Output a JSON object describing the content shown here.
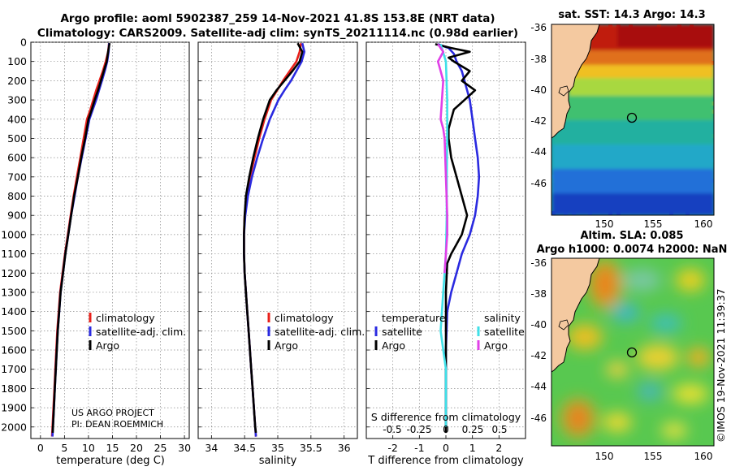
{
  "header": {
    "title_line1": "Argo profile: aoml 5902387_259 14-Nov-2021 41.8S 153.8E (NRT data)",
    "title_line2": "Climatology: CARS2009. Satellite-adj clim: synTS_20211114.nc (0.98d earlier)"
  },
  "credits": {
    "project": "US ARGO PROJECT",
    "pi": "PI: DEAN ROEMMICH",
    "imos": "©IMOS 19-Nov-2021 11:39:37"
  },
  "colors": {
    "climatology": "#e8201a",
    "satellite": "#2a2ae0",
    "argo": "#000000",
    "sat_temp_diff": "#40e0e8",
    "argo_sal_diff": "#e040e8",
    "land": "#f4c9a0"
  },
  "chart_data": [
    {
      "type": "line",
      "id": "temperature",
      "xlabel": "temperature (deg C)",
      "ylabel": "",
      "xlim": [
        -2,
        31
      ],
      "ylim": [
        2060,
        0
      ],
      "x_ticks": [
        0,
        5,
        10,
        15,
        20,
        25,
        30
      ],
      "y_ticks": [
        0,
        100,
        200,
        300,
        400,
        500,
        600,
        700,
        800,
        900,
        1000,
        1100,
        1200,
        1300,
        1400,
        1500,
        1600,
        1700,
        1800,
        1900,
        2000
      ],
      "grid": true,
      "legend": [
        "climatology",
        "satellite-adj. clim.",
        "Argo"
      ],
      "series": [
        {
          "name": "climatology",
          "color_key": "climatology",
          "points": [
            [
              14.3,
              5
            ],
            [
              14.1,
              50
            ],
            [
              13.6,
              100
            ],
            [
              13.0,
              150
            ],
            [
              12.3,
              200
            ],
            [
              11.6,
              250
            ],
            [
              11.0,
              300
            ],
            [
              10.4,
              350
            ],
            [
              9.7,
              400
            ],
            [
              9.0,
              500
            ],
            [
              8.3,
              600
            ],
            [
              7.6,
              700
            ],
            [
              6.9,
              800
            ],
            [
              6.3,
              900
            ],
            [
              5.7,
              1000
            ],
            [
              5.1,
              1100
            ],
            [
              4.6,
              1200
            ],
            [
              4.1,
              1300
            ],
            [
              3.8,
              1400
            ],
            [
              3.5,
              1500
            ],
            [
              3.3,
              1600
            ],
            [
              3.1,
              1700
            ],
            [
              2.9,
              1800
            ],
            [
              2.7,
              1900
            ],
            [
              2.5,
              2000
            ],
            [
              2.4,
              2050
            ]
          ]
        },
        {
          "name": "satellite-adj. clim.",
          "color_key": "satellite",
          "points": [
            [
              14.3,
              5
            ],
            [
              14.2,
              50
            ],
            [
              13.9,
              100
            ],
            [
              13.4,
              150
            ],
            [
              12.8,
              200
            ],
            [
              12.2,
              250
            ],
            [
              11.6,
              300
            ],
            [
              10.9,
              350
            ],
            [
              10.2,
              400
            ],
            [
              9.4,
              500
            ],
            [
              8.6,
              600
            ],
            [
              7.8,
              700
            ],
            [
              7.1,
              800
            ],
            [
              6.4,
              900
            ],
            [
              5.8,
              1000
            ],
            [
              5.2,
              1100
            ],
            [
              4.7,
              1200
            ],
            [
              4.2,
              1300
            ],
            [
              3.9,
              1400
            ],
            [
              3.6,
              1500
            ],
            [
              3.4,
              1600
            ],
            [
              3.2,
              1700
            ],
            [
              3.0,
              1800
            ],
            [
              2.8,
              1900
            ],
            [
              2.6,
              2000
            ],
            [
              2.5,
              2050
            ]
          ]
        },
        {
          "name": "Argo",
          "color_key": "argo",
          "points": [
            [
              14.4,
              5
            ],
            [
              14.1,
              50
            ],
            [
              13.8,
              100
            ],
            [
              13.2,
              150
            ],
            [
              12.6,
              200
            ],
            [
              12.0,
              250
            ],
            [
              11.3,
              300
            ],
            [
              10.7,
              350
            ],
            [
              10.0,
              400
            ],
            [
              9.3,
              500
            ],
            [
              8.5,
              600
            ],
            [
              7.8,
              700
            ],
            [
              7.0,
              800
            ],
            [
              6.4,
              900
            ],
            [
              5.8,
              1000
            ],
            [
              5.2,
              1100
            ],
            [
              4.7,
              1200
            ],
            [
              4.2,
              1300
            ],
            [
              3.9,
              1400
            ],
            [
              3.6,
              1500
            ],
            [
              3.4,
              1600
            ],
            [
              3.2,
              1700
            ],
            [
              3.0,
              1800
            ],
            [
              2.8,
              1900
            ],
            [
              2.6,
              2000
            ],
            [
              2.55,
              2030
            ]
          ]
        }
      ]
    },
    {
      "type": "line",
      "id": "salinity",
      "xlabel": "salinity",
      "ylabel": "",
      "xlim": [
        33.8,
        36.2
      ],
      "ylim": [
        2060,
        0
      ],
      "x_ticks": [
        34,
        34.5,
        35,
        35.5,
        36
      ],
      "grid": true,
      "legend": [
        "climatology",
        "satellite-adj. clim.",
        "Argo"
      ],
      "series": [
        {
          "name": "climatology",
          "color_key": "climatology",
          "points": [
            [
              35.35,
              5
            ],
            [
              35.33,
              50
            ],
            [
              35.28,
              100
            ],
            [
              35.18,
              150
            ],
            [
              35.08,
              200
            ],
            [
              34.99,
              250
            ],
            [
              34.9,
              300
            ],
            [
              34.8,
              400
            ],
            [
              34.72,
              500
            ],
            [
              34.65,
              600
            ],
            [
              34.58,
              700
            ],
            [
              34.53,
              800
            ],
            [
              34.5,
              900
            ],
            [
              34.49,
              1000
            ],
            [
              34.49,
              1100
            ],
            [
              34.5,
              1200
            ],
            [
              34.52,
              1300
            ],
            [
              34.54,
              1400
            ],
            [
              34.56,
              1500
            ],
            [
              34.58,
              1600
            ],
            [
              34.6,
              1700
            ],
            [
              34.62,
              1800
            ],
            [
              34.64,
              1900
            ],
            [
              34.66,
              2000
            ],
            [
              34.67,
              2050
            ]
          ]
        },
        {
          "name": "satellite-adj. clim.",
          "color_key": "satellite",
          "points": [
            [
              35.37,
              5
            ],
            [
              35.4,
              50
            ],
            [
              35.36,
              100
            ],
            [
              35.28,
              150
            ],
            [
              35.2,
              200
            ],
            [
              35.1,
              250
            ],
            [
              35.01,
              300
            ],
            [
              34.88,
              400
            ],
            [
              34.78,
              500
            ],
            [
              34.69,
              600
            ],
            [
              34.61,
              700
            ],
            [
              34.55,
              800
            ],
            [
              34.51,
              900
            ],
            [
              34.49,
              1000
            ],
            [
              34.49,
              1100
            ],
            [
              34.5,
              1200
            ],
            [
              34.52,
              1300
            ],
            [
              34.54,
              1400
            ],
            [
              34.56,
              1500
            ],
            [
              34.58,
              1600
            ],
            [
              34.6,
              1700
            ],
            [
              34.62,
              1800
            ],
            [
              34.64,
              1900
            ],
            [
              34.66,
              2000
            ],
            [
              34.67,
              2050
            ]
          ]
        },
        {
          "name": "Argo",
          "color_key": "argo",
          "points": [
            [
              35.3,
              5
            ],
            [
              35.37,
              50
            ],
            [
              35.33,
              100
            ],
            [
              35.22,
              150
            ],
            [
              35.1,
              200
            ],
            [
              34.98,
              250
            ],
            [
              34.88,
              300
            ],
            [
              34.78,
              400
            ],
            [
              34.7,
              500
            ],
            [
              34.63,
              600
            ],
            [
              34.57,
              700
            ],
            [
              34.52,
              800
            ],
            [
              34.5,
              900
            ],
            [
              34.49,
              1000
            ],
            [
              34.49,
              1100
            ],
            [
              34.5,
              1200
            ],
            [
              34.52,
              1300
            ],
            [
              34.54,
              1400
            ],
            [
              34.56,
              1500
            ],
            [
              34.58,
              1600
            ],
            [
              34.6,
              1700
            ],
            [
              34.62,
              1800
            ],
            [
              34.64,
              1900
            ],
            [
              34.66,
              2000
            ],
            [
              34.67,
              2030
            ]
          ]
        }
      ]
    },
    {
      "type": "line",
      "id": "difference",
      "xlabel": "T difference from climatology",
      "top_label": "S difference from climatology",
      "xlim": [
        -3,
        3
      ],
      "ylim": [
        2060,
        0
      ],
      "x_ticks": [
        -2,
        -1,
        0,
        1,
        2
      ],
      "s_ticks": [
        "-0.5",
        "-0.25",
        "0",
        "0.25",
        "0.5"
      ],
      "grid": true,
      "legend_temperature_title": "temperature",
      "legend_salinity_title": "salinity",
      "legend_temperature": [
        "satellite",
        "Argo"
      ],
      "legend_salinity": [
        "satellite",
        "Argo"
      ],
      "series": [
        {
          "name": "satellite temperature",
          "color_key": "satellite",
          "points": [
            [
              -0.3,
              10
            ],
            [
              0.1,
              30
            ],
            [
              0.3,
              60
            ],
            [
              0.4,
              100
            ],
            [
              0.6,
              150
            ],
            [
              0.7,
              200
            ],
            [
              0.8,
              250
            ],
            [
              0.9,
              300
            ],
            [
              1.0,
              400
            ],
            [
              1.1,
              500
            ],
            [
              1.2,
              600
            ],
            [
              1.25,
              700
            ],
            [
              1.2,
              800
            ],
            [
              1.1,
              900
            ],
            [
              0.9,
              1000
            ],
            [
              0.6,
              1100
            ],
            [
              0.4,
              1200
            ],
            [
              0.2,
              1300
            ],
            [
              0.05,
              1400
            ],
            [
              0.0,
              1600
            ],
            [
              0.0,
              2000
            ]
          ]
        },
        {
          "name": "Argo temperature",
          "color_key": "argo",
          "points": [
            [
              -0.4,
              10
            ],
            [
              0.2,
              30
            ],
            [
              0.9,
              50
            ],
            [
              0.1,
              80
            ],
            [
              0.3,
              100
            ],
            [
              0.9,
              150
            ],
            [
              0.6,
              200
            ],
            [
              1.1,
              250
            ],
            [
              0.7,
              300
            ],
            [
              0.3,
              350
            ],
            [
              0.2,
              400
            ],
            [
              0.1,
              450
            ],
            [
              0.1,
              500
            ],
            [
              0.2,
              600
            ],
            [
              0.4,
              700
            ],
            [
              0.6,
              800
            ],
            [
              0.8,
              900
            ],
            [
              0.6,
              1000
            ],
            [
              0.4,
              1050
            ],
            [
              0.2,
              1100
            ],
            [
              0.05,
              1150
            ],
            [
              0.0,
              1300
            ],
            [
              0.0,
              2030
            ]
          ]
        },
        {
          "name": "satellite salinity",
          "color_key": "sat_temp_diff",
          "points": [
            [
              -0.2,
              10
            ],
            [
              0.0,
              100
            ],
            [
              0.05,
              300
            ],
            [
              0.05,
              500
            ],
            [
              0.03,
              700
            ],
            [
              0.03,
              900
            ],
            [
              0.0,
              1100
            ],
            [
              -0.05,
              1200
            ],
            [
              -0.1,
              1300
            ],
            [
              -0.15,
              1400
            ],
            [
              -0.2,
              1500
            ],
            [
              -0.15,
              1550
            ],
            [
              0.0,
              1700
            ],
            [
              0.0,
              2000
            ]
          ]
        },
        {
          "name": "Argo salinity",
          "color_key": "argo_sal_diff",
          "points": [
            [
              -0.3,
              10
            ],
            [
              -0.1,
              50
            ],
            [
              -0.3,
              100
            ],
            [
              -0.2,
              150
            ],
            [
              -0.1,
              200
            ],
            [
              -0.15,
              300
            ],
            [
              -0.2,
              400
            ],
            [
              -0.1,
              450
            ],
            [
              -0.05,
              500
            ],
            [
              0.0,
              700
            ],
            [
              0.05,
              900
            ],
            [
              0.05,
              1000
            ],
            [
              0.0,
              1100
            ],
            [
              -0.05,
              1200
            ]
          ]
        }
      ]
    }
  ],
  "map_sst": {
    "title": "sat. SST: 14.3 Argo: 14.3",
    "lat_ticks": [
      "-36",
      "-38",
      "-40",
      "-42",
      "-44",
      "-46"
    ],
    "lon_ticks": [
      "150",
      "155",
      "160"
    ]
  },
  "map_sla": {
    "title_line1": "Altim. SLA: 0.085",
    "title_line2": "Argo h1000: 0.0074 h2000: NaN",
    "lat_ticks": [
      "-36",
      "-38",
      "-40",
      "-42",
      "-44",
      "-46"
    ],
    "lon_ticks": [
      "150",
      "155",
      "160"
    ]
  }
}
